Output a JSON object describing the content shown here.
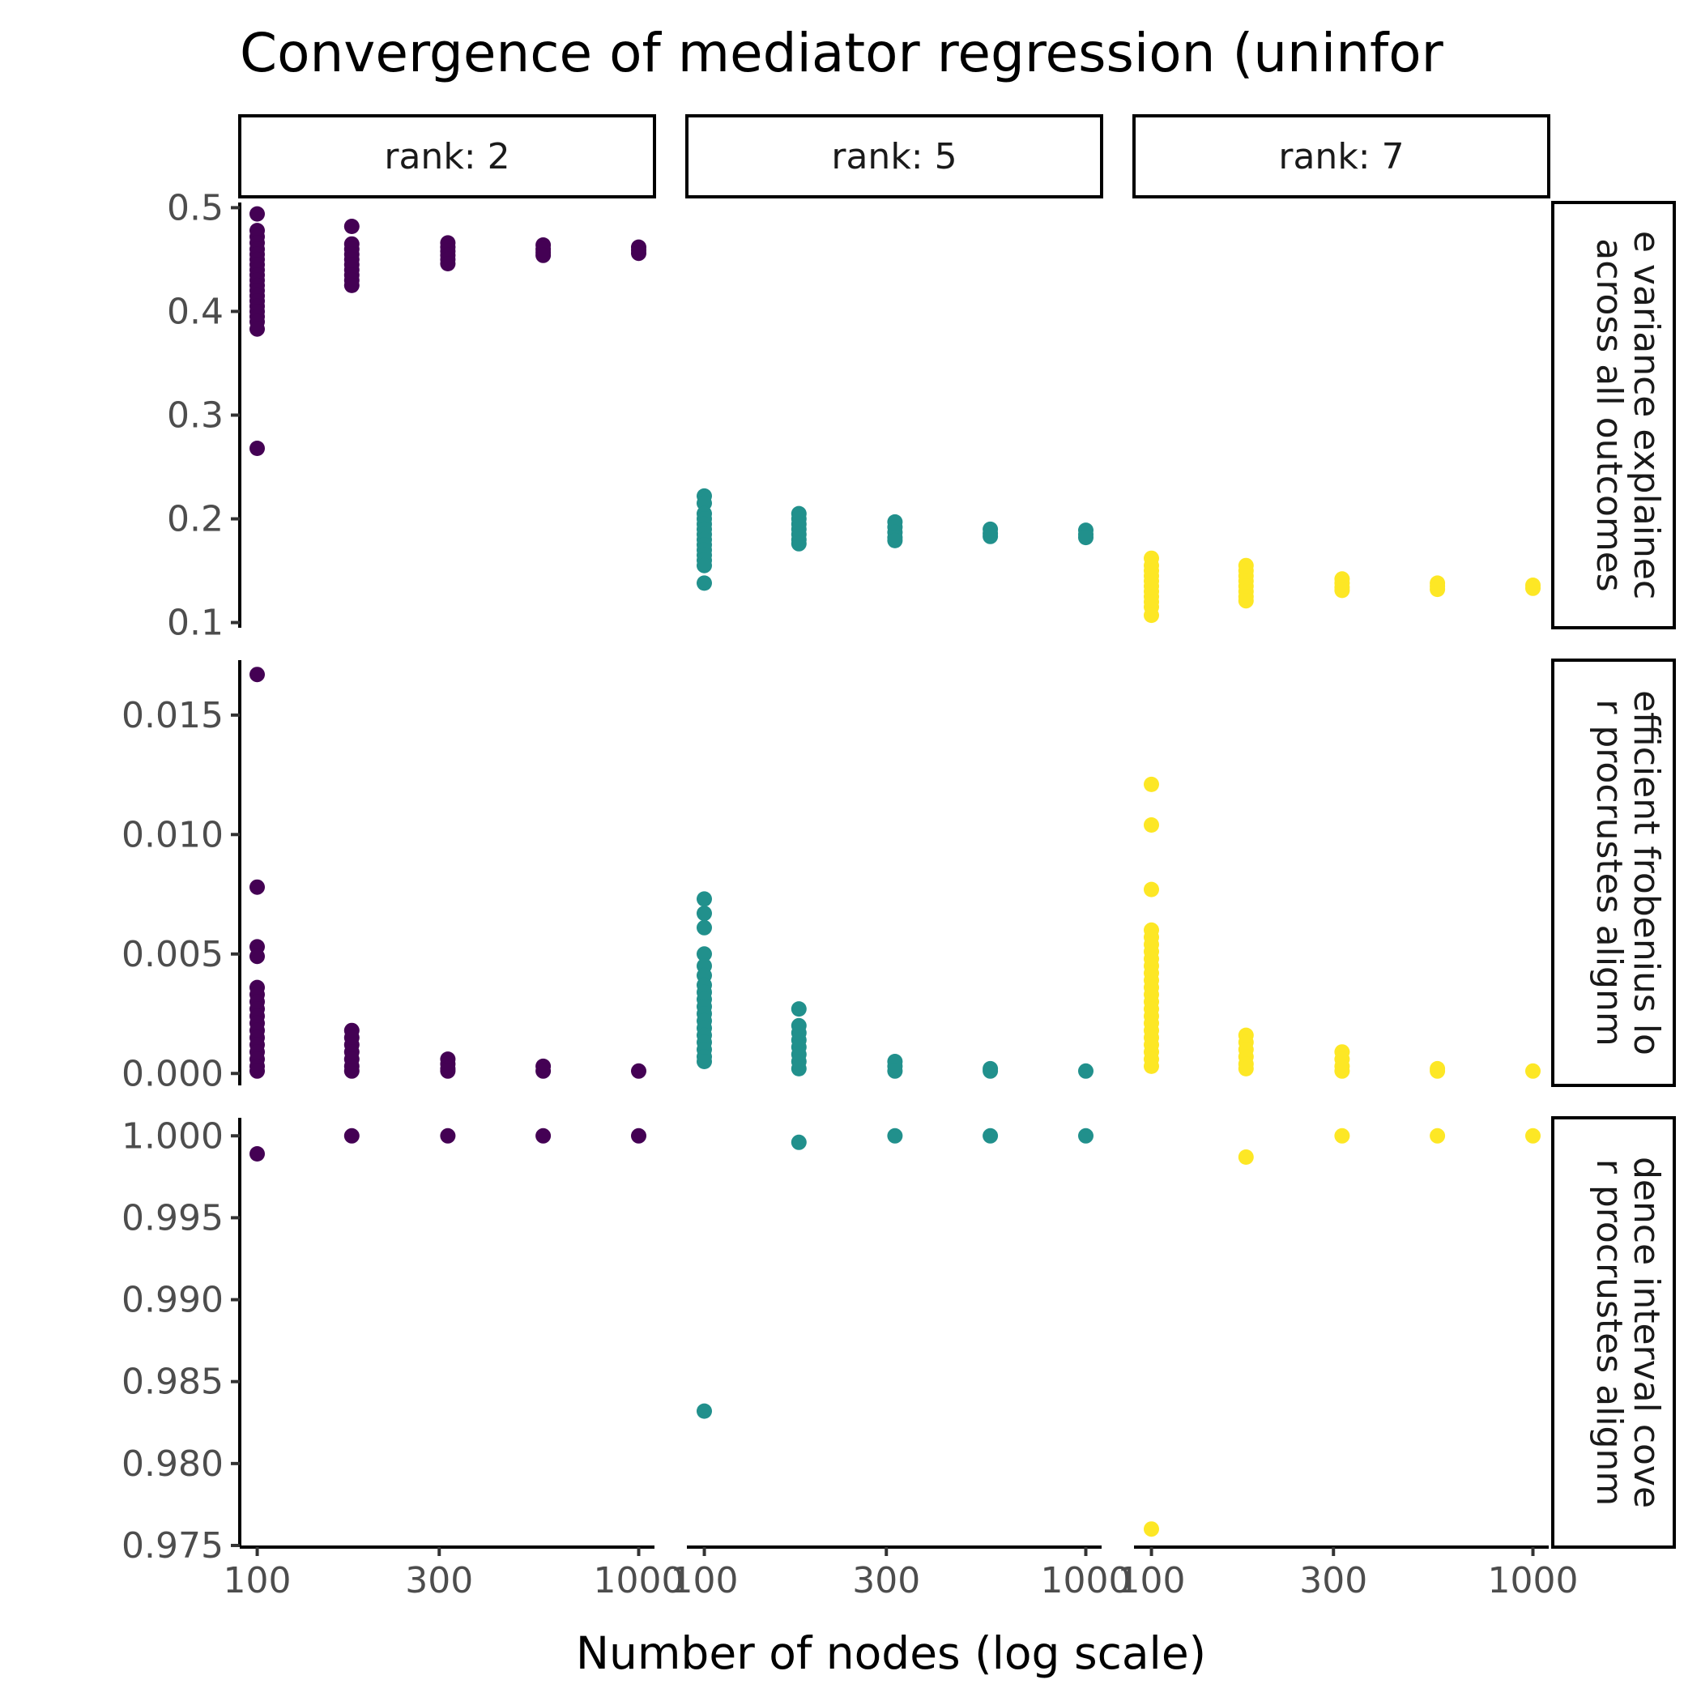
{
  "chart_data": {
    "type": "scatter",
    "title": "Convergence of mediator regression (uninfor",
    "xlabel": "Number of nodes (log scale)",
    "x_scale": "log",
    "x_ticks": [
      100,
      300,
      1000
    ],
    "x_tick_labels": [
      "100",
      "300",
      "1000"
    ],
    "columns": [
      {
        "label": "rank: 2",
        "rank": 2,
        "color": "#440154"
      },
      {
        "label": "rank: 5",
        "rank": 5,
        "color": "#21908C"
      },
      {
        "label": "rank: 7",
        "rank": 7,
        "color": "#FDE725"
      }
    ],
    "rows": [
      {
        "strip_lines": [
          "e variance explainec",
          "across all outcomes"
        ],
        "ylim": [
          0.095,
          0.505
        ],
        "y_ticks": [
          0.1,
          0.2,
          0.3,
          0.4,
          0.5
        ],
        "y_tick_labels": [
          "0.1",
          "0.2",
          "0.3",
          "0.4",
          "0.5"
        ]
      },
      {
        "strip_lines": [
          "efficient frobenius lo",
          "r procrustes alignm"
        ],
        "ylim": [
          -0.0005,
          0.0173
        ],
        "y_ticks": [
          0.0,
          0.005,
          0.01,
          0.015
        ],
        "y_tick_labels": [
          "0.000",
          "0.005",
          "0.010",
          "0.015"
        ]
      },
      {
        "strip_lines": [
          "dence interval cove",
          "r procrustes alignm"
        ],
        "ylim": [
          0.9749,
          1.0011
        ],
        "y_ticks": [
          0.975,
          0.98,
          0.985,
          0.99,
          0.995,
          1.0
        ],
        "y_tick_labels": [
          "0.975",
          "0.980",
          "0.985",
          "0.990",
          "0.995",
          "1.000"
        ]
      }
    ],
    "series": [
      {
        "row": 0,
        "col": 0,
        "x": 100,
        "y": [
          0.494,
          0.478,
          0.472,
          0.466,
          0.46,
          0.455,
          0.45,
          0.445,
          0.44,
          0.435,
          0.43,
          0.425,
          0.42,
          0.415,
          0.41,
          0.405,
          0.4,
          0.395,
          0.39,
          0.383,
          0.268
        ]
      },
      {
        "row": 0,
        "col": 0,
        "x": 177,
        "y": [
          0.482,
          0.465,
          0.46,
          0.455,
          0.45,
          0.445,
          0.44,
          0.435,
          0.43,
          0.425
        ]
      },
      {
        "row": 0,
        "col": 0,
        "x": 316,
        "y": [
          0.466,
          0.462,
          0.458,
          0.454,
          0.45,
          0.446
        ]
      },
      {
        "row": 0,
        "col": 0,
        "x": 562,
        "y": [
          0.464,
          0.46,
          0.457,
          0.454
        ]
      },
      {
        "row": 0,
        "col": 0,
        "x": 1000,
        "y": [
          0.462,
          0.459,
          0.456
        ]
      },
      {
        "row": 0,
        "col": 1,
        "x": 100,
        "y": [
          0.222,
          0.215,
          0.205,
          0.2,
          0.195,
          0.19,
          0.185,
          0.18,
          0.175,
          0.17,
          0.165,
          0.16,
          0.155,
          0.138
        ]
      },
      {
        "row": 0,
        "col": 1,
        "x": 177,
        "y": [
          0.205,
          0.2,
          0.195,
          0.19,
          0.185,
          0.18,
          0.176
        ]
      },
      {
        "row": 0,
        "col": 1,
        "x": 316,
        "y": [
          0.197,
          0.192,
          0.187,
          0.182,
          0.179
        ]
      },
      {
        "row": 0,
        "col": 1,
        "x": 562,
        "y": [
          0.19,
          0.186,
          0.183
        ]
      },
      {
        "row": 0,
        "col": 1,
        "x": 1000,
        "y": [
          0.189,
          0.185,
          0.182
        ]
      },
      {
        "row": 0,
        "col": 2,
        "x": 100,
        "y": [
          0.162,
          0.155,
          0.15,
          0.145,
          0.14,
          0.135,
          0.13,
          0.125,
          0.12,
          0.115,
          0.107
        ]
      },
      {
        "row": 0,
        "col": 2,
        "x": 177,
        "y": [
          0.155,
          0.15,
          0.145,
          0.14,
          0.135,
          0.13,
          0.125,
          0.121
        ]
      },
      {
        "row": 0,
        "col": 2,
        "x": 316,
        "y": [
          0.142,
          0.138,
          0.134,
          0.131
        ]
      },
      {
        "row": 0,
        "col": 2,
        "x": 562,
        "y": [
          0.138,
          0.135,
          0.132
        ]
      },
      {
        "row": 0,
        "col": 2,
        "x": 1000,
        "y": [
          0.136,
          0.133
        ]
      },
      {
        "row": 1,
        "col": 0,
        "x": 100,
        "y": [
          0.0167,
          0.0078,
          0.0053,
          0.0049,
          0.0036,
          0.0033,
          0.003,
          0.0027,
          0.0024,
          0.0021,
          0.0018,
          0.0015,
          0.0012,
          0.0009,
          0.0006,
          0.0003,
          0.0001
        ]
      },
      {
        "row": 1,
        "col": 0,
        "x": 177,
        "y": [
          0.0018,
          0.0015,
          0.0012,
          0.0009,
          0.0006,
          0.0003,
          0.0001
        ]
      },
      {
        "row": 1,
        "col": 0,
        "x": 316,
        "y": [
          0.0006,
          0.0004,
          0.0002,
          0.0001
        ]
      },
      {
        "row": 1,
        "col": 0,
        "x": 562,
        "y": [
          0.0003,
          0.0001
        ]
      },
      {
        "row": 1,
        "col": 0,
        "x": 1000,
        "y": [
          0.0001
        ]
      },
      {
        "row": 1,
        "col": 1,
        "x": 100,
        "y": [
          0.0073,
          0.0067,
          0.0061,
          0.005,
          0.0045,
          0.0041,
          0.0037,
          0.0034,
          0.0031,
          0.0028,
          0.0025,
          0.0022,
          0.0019,
          0.0016,
          0.0013,
          0.001,
          0.0007,
          0.0005
        ]
      },
      {
        "row": 1,
        "col": 1,
        "x": 177,
        "y": [
          0.0027,
          0.002,
          0.0017,
          0.0014,
          0.0011,
          0.0008,
          0.0005,
          0.0002
        ]
      },
      {
        "row": 1,
        "col": 1,
        "x": 316,
        "y": [
          0.0005,
          0.0003,
          0.0001
        ]
      },
      {
        "row": 1,
        "col": 1,
        "x": 562,
        "y": [
          0.0002,
          0.0001
        ]
      },
      {
        "row": 1,
        "col": 1,
        "x": 1000,
        "y": [
          0.0001
        ]
      },
      {
        "row": 1,
        "col": 2,
        "x": 100,
        "y": [
          0.0121,
          0.0104,
          0.0077,
          0.006,
          0.0057,
          0.0054,
          0.0051,
          0.0048,
          0.0045,
          0.0042,
          0.0039,
          0.0036,
          0.0033,
          0.003,
          0.0027,
          0.0024,
          0.0021,
          0.0018,
          0.0015,
          0.0012,
          0.0009,
          0.0006,
          0.0003
        ]
      },
      {
        "row": 1,
        "col": 2,
        "x": 177,
        "y": [
          0.0016,
          0.0013,
          0.001,
          0.0007,
          0.0004,
          0.0002
        ]
      },
      {
        "row": 1,
        "col": 2,
        "x": 316,
        "y": [
          0.0009,
          0.0006,
          0.0003,
          0.0001
        ]
      },
      {
        "row": 1,
        "col": 2,
        "x": 562,
        "y": [
          0.0002,
          0.0001
        ]
      },
      {
        "row": 1,
        "col": 2,
        "x": 1000,
        "y": [
          0.0001
        ]
      },
      {
        "row": 2,
        "col": 0,
        "x": 100,
        "y": [
          0.9989
        ]
      },
      {
        "row": 2,
        "col": 0,
        "x": 177,
        "y": [
          1.0
        ]
      },
      {
        "row": 2,
        "col": 0,
        "x": 316,
        "y": [
          1.0
        ]
      },
      {
        "row": 2,
        "col": 0,
        "x": 562,
        "y": [
          1.0
        ]
      },
      {
        "row": 2,
        "col": 0,
        "x": 1000,
        "y": [
          1.0
        ]
      },
      {
        "row": 2,
        "col": 1,
        "x": 100,
        "y": [
          0.9832
        ]
      },
      {
        "row": 2,
        "col": 1,
        "x": 177,
        "y": [
          0.9996
        ]
      },
      {
        "row": 2,
        "col": 1,
        "x": 316,
        "y": [
          1.0
        ]
      },
      {
        "row": 2,
        "col": 1,
        "x": 562,
        "y": [
          1.0
        ]
      },
      {
        "row": 2,
        "col": 1,
        "x": 1000,
        "y": [
          1.0
        ]
      },
      {
        "row": 2,
        "col": 2,
        "x": 100,
        "y": [
          0.976
        ]
      },
      {
        "row": 2,
        "col": 2,
        "x": 177,
        "y": [
          0.9987
        ]
      },
      {
        "row": 2,
        "col": 2,
        "x": 316,
        "y": [
          1.0
        ]
      },
      {
        "row": 2,
        "col": 2,
        "x": 562,
        "y": [
          1.0
        ]
      },
      {
        "row": 2,
        "col": 2,
        "x": 1000,
        "y": [
          1.0
        ]
      }
    ]
  }
}
